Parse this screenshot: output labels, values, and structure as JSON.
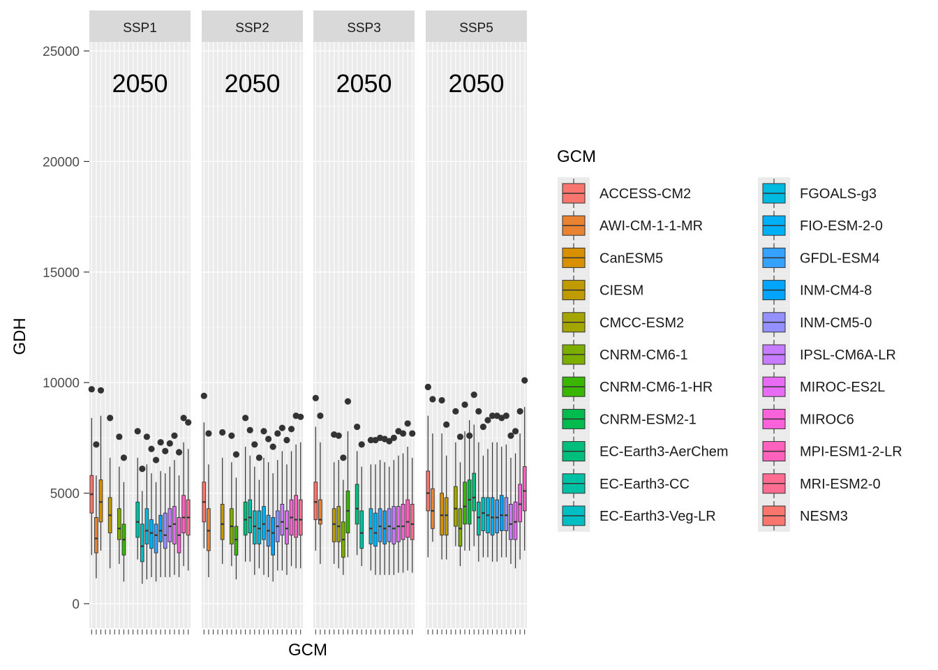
{
  "chart_data": {
    "type": "boxplot",
    "xlabel": "GCM",
    "ylabel": "GDH",
    "ylim": [
      -1100,
      26800
    ],
    "y_ticks": [
      0,
      5000,
      10000,
      15000,
      20000,
      25000
    ],
    "y_tick_labels": [
      "0",
      "5000",
      "10000",
      "15000",
      "20000",
      "25000"
    ],
    "x_tick_labels_shown": false,
    "grid": true,
    "legend_title": "GCM",
    "legend_position": "right",
    "categories": [
      "ACCESS-CM2",
      "AWI-CM-1-1-MR",
      "CanESM5",
      "CIESM",
      "CMCC-ESM2",
      "CNRM-CM6-1",
      "CNRM-CM6-1-HR",
      "CNRM-ESM2-1",
      "EC-Earth3-AerChem",
      "EC-Earth3-CC",
      "EC-Earth3-Veg-LR",
      "FGOALS-g3",
      "FIO-ESM-2-0",
      "GFDL-ESM4",
      "INM-CM4-8",
      "INM-CM5-0",
      "IPSL-CM6A-LR",
      "MIROC-ES2L",
      "MIROC6",
      "MPI-ESM1-2-LR",
      "MRI-ESM2-0",
      "NESM3"
    ],
    "colors": [
      "#F8766D",
      "#EA8331",
      "#D89000",
      "#C09B00",
      "#A3A500",
      "#7CAE00",
      "#39B600",
      "#00BB4E",
      "#00BF7D",
      "#00C1A3",
      "#00BFC4",
      "#00BAE0",
      "#00B0F6",
      "#35A2FF",
      "#00A5FF",
      "#9590FF",
      "#C77CFF",
      "#E76BF3",
      "#FA62DB",
      "#FF62BC",
      "#FF6C91",
      "#F8766D"
    ],
    "panels": [
      {
        "label": "SSP1",
        "annotation": "2050",
        "boxes": [
          {
            "gcm": "ACCESS-CM2",
            "min": 2200,
            "q1": 4100,
            "median": 4950,
            "q3": 5800,
            "max": 8400,
            "outliers": [
              9700
            ]
          },
          {
            "gcm": "AWI-CM-1-1-MR",
            "min": 1150,
            "q1": 2300,
            "median": 2950,
            "q3": 3900,
            "max": 5800,
            "outliers": [
              7200
            ]
          },
          {
            "gcm": "CanESM5",
            "min": 2400,
            "q1": 3700,
            "median": 4600,
            "q3": 5600,
            "max": 8500,
            "outliers": [
              9650
            ]
          },
          null,
          {
            "gcm": "CIESM",
            "min": 1600,
            "q1": 3200,
            "median": 4000,
            "q3": 4800,
            "max": 6600,
            "outliers": [
              8400
            ]
          },
          null,
          {
            "gcm": "CNRM-CM6-1",
            "min": 1800,
            "q1": 2900,
            "median": 3400,
            "q3": 4300,
            "max": 6200,
            "outliers": [
              7550
            ]
          },
          {
            "gcm": "CNRM-CM6-1-HR",
            "min": 1000,
            "q1": 2200,
            "median": 2900,
            "q3": 3600,
            "max": 5500,
            "outliers": [
              6600
            ]
          },
          null,
          null,
          {
            "gcm": "EC-Earth3-CC",
            "min": 2000,
            "q1": 3000,
            "median": 3700,
            "q3": 4600,
            "max": 6600,
            "outliers": [
              7800
            ]
          },
          {
            "gcm": "EC-Earth3-Veg-LR",
            "min": 900,
            "q1": 1900,
            "median": 2600,
            "q3": 3600,
            "max": 5100,
            "outliers": [
              6100
            ]
          },
          {
            "gcm": "FGOALS-g3",
            "min": 1100,
            "q1": 2700,
            "median": 3300,
            "q3": 4300,
            "max": 6300,
            "outliers": [
              7550
            ]
          },
          {
            "gcm": "FIO-ESM-2-0",
            "min": 1200,
            "q1": 2500,
            "median": 3200,
            "q3": 3800,
            "max": 5900,
            "outliers": [
              7000
            ]
          },
          {
            "gcm": "GFDL-ESM4",
            "min": 1000,
            "q1": 2300,
            "median": 3100,
            "q3": 3600,
            "max": 5500,
            "outliers": [
              6500
            ]
          },
          {
            "gcm": "INM-CM4-8",
            "min": 1200,
            "q1": 2800,
            "median": 3300,
            "q3": 4000,
            "max": 6000,
            "outliers": [
              7300
            ]
          },
          {
            "gcm": "INM-CM5-0",
            "min": 1200,
            "q1": 2500,
            "median": 3100,
            "q3": 4100,
            "max": 5900,
            "outliers": [
              6900
            ]
          },
          {
            "gcm": "IPSL-CM6A-LR",
            "min": 1200,
            "q1": 2800,
            "median": 3500,
            "q3": 4300,
            "max": 6200,
            "outliers": [
              7250
            ]
          },
          {
            "gcm": "MIROC-ES2L",
            "min": 1300,
            "q1": 2700,
            "median": 3600,
            "q3": 4400,
            "max": 6500,
            "outliers": [
              7600
            ]
          },
          {
            "gcm": "MIROC6",
            "min": 1200,
            "q1": 2300,
            "median": 3100,
            "q3": 3900,
            "max": 5800,
            "outliers": [
              6850
            ]
          },
          {
            "gcm": "MPI-ESM1-2-LR",
            "min": 1700,
            "q1": 3200,
            "median": 3900,
            "q3": 4900,
            "max": 7300,
            "outliers": [
              8400
            ]
          },
          {
            "gcm": "MRI-ESM2-0",
            "min": 1500,
            "q1": 3100,
            "median": 3900,
            "q3": 4700,
            "max": 7000,
            "outliers": [
              8200
            ]
          }
        ]
      },
      {
        "label": "SSP2",
        "annotation": "2050",
        "boxes": [
          {
            "gcm": "ACCESS-CM2",
            "min": 2500,
            "q1": 3700,
            "median": 4600,
            "q3": 5500,
            "max": 8200,
            "outliers": [
              9400
            ]
          },
          {
            "gcm": "AWI-CM-1-1-MR",
            "min": 1200,
            "q1": 2400,
            "median": 3300,
            "q3": 4300,
            "max": 6300,
            "outliers": [
              7700
            ]
          },
          null,
          null,
          {
            "gcm": "CIESM",
            "min": 1800,
            "q1": 2900,
            "median": 3600,
            "q3": 4500,
            "max": 6600,
            "outliers": [
              7750
            ]
          },
          null,
          {
            "gcm": "CNRM-CM6-1",
            "min": 1700,
            "q1": 2700,
            "median": 3500,
            "q3": 4300,
            "max": 6400,
            "outliers": [
              7600
            ]
          },
          {
            "gcm": "CNRM-CM6-1-HR",
            "min": 1100,
            "q1": 2200,
            "median": 2900,
            "q3": 3500,
            "max": 5700,
            "outliers": [
              6750
            ]
          },
          null,
          {
            "gcm": "EC-Earth3-AerChem",
            "min": 1900,
            "q1": 3100,
            "median": 3800,
            "q3": 4600,
            "max": 7100,
            "outliers": [
              8400
            ]
          },
          {
            "gcm": "EC-Earth3-CC",
            "min": 1900,
            "q1": 3200,
            "median": 3900,
            "q3": 4700,
            "max": 6700,
            "outliers": [
              7850
            ]
          },
          {
            "gcm": "EC-Earth3-Veg-LR",
            "min": 1300,
            "q1": 2700,
            "median": 3500,
            "q3": 4200,
            "max": 6200,
            "outliers": [
              7200
            ]
          },
          {
            "gcm": "FGOALS-g3",
            "min": 1600,
            "q1": 2700,
            "median": 3400,
            "q3": 4200,
            "max": 5600,
            "outliers": [
              6600
            ]
          },
          {
            "gcm": "FIO-ESM-2-0",
            "min": 1300,
            "q1": 2900,
            "median": 3600,
            "q3": 4400,
            "max": 6600,
            "outliers": [
              7800
            ]
          },
          {
            "gcm": "GFDL-ESM4",
            "min": 1200,
            "q1": 2600,
            "median": 3300,
            "q3": 4000,
            "max": 6400,
            "outliers": [
              7450
            ]
          },
          {
            "gcm": "INM-CM4-8",
            "min": 1000,
            "q1": 2200,
            "median": 3200,
            "q3": 3900,
            "max": 5900,
            "outliers": [
              7100
            ]
          },
          {
            "gcm": "INM-CM5-0",
            "min": 1500,
            "q1": 2800,
            "median": 3500,
            "q3": 4200,
            "max": 6500,
            "outliers": [
              7700
            ]
          },
          {
            "gcm": "IPSL-CM6A-LR",
            "min": 1500,
            "q1": 3100,
            "median": 3700,
            "q3": 4500,
            "max": 6900,
            "outliers": [
              7950
            ]
          },
          {
            "gcm": "MIROC-ES2L",
            "min": 1300,
            "q1": 2700,
            "median": 3400,
            "q3": 4200,
            "max": 6300,
            "outliers": [
              7400
            ]
          },
          {
            "gcm": "MIROC6",
            "min": 1700,
            "q1": 3100,
            "median": 3900,
            "q3": 4700,
            "max": 6900,
            "outliers": [
              7900
            ]
          },
          {
            "gcm": "MPI-ESM1-2-LR",
            "min": 1600,
            "q1": 3000,
            "median": 3800,
            "q3": 4900,
            "max": 7200,
            "outliers": [
              8500
            ]
          },
          {
            "gcm": "MRI-ESM2-0",
            "min": 1600,
            "q1": 3100,
            "median": 3800,
            "q3": 4700,
            "max": 7300,
            "outliers": [
              8450
            ]
          }
        ]
      },
      {
        "label": "SSP3",
        "annotation": "2050",
        "boxes": [
          {
            "gcm": "ACCESS-CM2",
            "min": 2400,
            "q1": 3800,
            "median": 4600,
            "q3": 5500,
            "max": 8000,
            "outliers": [
              9300
            ]
          },
          {
            "gcm": "AWI-CM-1-1-MR",
            "min": 1800,
            "q1": 3600,
            "median": 3800,
            "q3": 4700,
            "max": 7300,
            "outliers": [
              8500
            ]
          },
          null,
          null,
          {
            "gcm": "CIESM",
            "min": 1800,
            "q1": 2800,
            "median": 3600,
            "q3": 4300,
            "max": 6400,
            "outliers": [
              7650
            ]
          },
          {
            "gcm": "CMCC-ESM2",
            "min": 1600,
            "q1": 2800,
            "median": 3500,
            "q3": 4400,
            "max": 6500,
            "outliers": [
              7600
            ]
          },
          {
            "gcm": "CNRM-CM6-1",
            "min": 1300,
            "q1": 2100,
            "median": 2900,
            "q3": 3700,
            "max": 5600,
            "outliers": [
              6600
            ]
          },
          {
            "gcm": "CNRM-CM6-1-HR",
            "min": 2100,
            "q1": 3200,
            "median": 4200,
            "q3": 5100,
            "max": 7800,
            "outliers": [
              9150
            ]
          },
          null,
          {
            "gcm": "EC-Earth3-AerChem",
            "min": 2200,
            "q1": 3600,
            "median": 4300,
            "q3": 5400,
            "max": 6900,
            "outliers": [
              8000
            ]
          },
          {
            "gcm": "EC-Earth3-CC",
            "min": 1700,
            "q1": 2500,
            "median": 3200,
            "q3": 4200,
            "max": 6200,
            "outliers": [
              7200
            ]
          },
          null,
          {
            "gcm": "FGOALS-g3",
            "min": 1500,
            "q1": 2700,
            "median": 3400,
            "q3": 4300,
            "max": 6300,
            "outliers": [
              7400
            ]
          },
          {
            "gcm": "FIO-ESM-2-0",
            "min": 1300,
            "q1": 2600,
            "median": 3200,
            "q3": 4100,
            "max": 6300,
            "outliers": [
              7400
            ]
          },
          {
            "gcm": "GFDL-ESM4",
            "min": 1300,
            "q1": 2800,
            "median": 3500,
            "q3": 4300,
            "max": 6500,
            "outliers": [
              7500
            ]
          },
          {
            "gcm": "INM-CM4-8",
            "min": 1300,
            "q1": 2700,
            "median": 3400,
            "q3": 4200,
            "max": 6400,
            "outliers": [
              7450
            ]
          },
          {
            "gcm": "INM-CM5-0",
            "min": 1300,
            "q1": 2800,
            "median": 3500,
            "q3": 4300,
            "max": 6200,
            "outliers": [
              7350
            ]
          },
          {
            "gcm": "IPSL-CM6A-LR",
            "min": 1300,
            "q1": 2700,
            "median": 3400,
            "q3": 4400,
            "max": 6500,
            "outliers": [
              7500
            ]
          },
          {
            "gcm": "MIROC-ES2L",
            "min": 1400,
            "q1": 2800,
            "median": 3500,
            "q3": 4400,
            "max": 6700,
            "outliers": [
              7800
            ]
          },
          {
            "gcm": "MIROC6",
            "min": 1400,
            "q1": 2900,
            "median": 3500,
            "q3": 4500,
            "max": 6800,
            "outliers": [
              7700
            ]
          },
          {
            "gcm": "MPI-ESM1-2-LR",
            "min": 1500,
            "q1": 3000,
            "median": 3700,
            "q3": 4700,
            "max": 7100,
            "outliers": [
              8150
            ]
          },
          {
            "gcm": "MRI-ESM2-0",
            "min": 1400,
            "q1": 2900,
            "median": 3600,
            "q3": 4500,
            "max": 6600,
            "outliers": [
              7700
            ]
          }
        ]
      },
      {
        "label": "SSP5",
        "annotation": "2050",
        "boxes": [
          {
            "gcm": "ACCESS-CM2",
            "min": 2100,
            "q1": 4200,
            "median": 5000,
            "q3": 6000,
            "max": 8500,
            "outliers": [
              9800
            ]
          },
          {
            "gcm": "AWI-CM-1-1-MR",
            "min": 2800,
            "q1": 3400,
            "median": 4200,
            "q3": 5200,
            "max": 7700,
            "outliers": [
              9250
            ]
          },
          null,
          {
            "gcm": "CanESM5",
            "min": 2000,
            "q1": 3100,
            "median": 4000,
            "q3": 5000,
            "max": 7700,
            "outliers": [
              9200
            ]
          },
          {
            "gcm": "CIESM",
            "min": 2000,
            "q1": 3100,
            "median": 4000,
            "q3": 4800,
            "max": 6700,
            "outliers": [
              8100
            ]
          },
          null,
          {
            "gcm": "CMCC-ESM2",
            "min": 2600,
            "q1": 3500,
            "median": 4300,
            "q3": 5300,
            "max": 7300,
            "outliers": [
              8700
            ]
          },
          {
            "gcm": "CNRM-CM6-1",
            "min": 1700,
            "q1": 2600,
            "median": 3400,
            "q3": 4300,
            "max": 6400,
            "outliers": [
              7550
            ]
          },
          {
            "gcm": "CNRM-CM6-1-HR",
            "min": 2400,
            "q1": 3600,
            "median": 4400,
            "q3": 5500,
            "max": 7800,
            "outliers": [
              9000
            ]
          },
          {
            "gcm": "CNRM-ESM2-1",
            "min": 2400,
            "q1": 3600,
            "median": 4700,
            "q3": 5600,
            "max": 8300,
            "outliers": [
              7600
            ]
          },
          {
            "gcm": "EC-Earth3-AerChem",
            "min": 2600,
            "q1": 4200,
            "median": 4800,
            "q3": 5900,
            "max": 8100,
            "outliers": [
              9450
            ]
          },
          {
            "gcm": "EC-Earth3-CC",
            "min": 1900,
            "q1": 3100,
            "median": 3900,
            "q3": 4600,
            "max": 7300,
            "outliers": [
              8700
            ]
          },
          {
            "gcm": "EC-Earth3-Veg-LR",
            "min": 2100,
            "q1": 3300,
            "median": 4100,
            "q3": 4800,
            "max": 6700,
            "outliers": [
              8000
            ]
          },
          {
            "gcm": "FGOALS-g3",
            "min": 2100,
            "q1": 3200,
            "median": 4000,
            "q3": 4800,
            "max": 7000,
            "outliers": [
              8300
            ]
          },
          {
            "gcm": "FIO-ESM-2-0",
            "min": 1900,
            "q1": 3100,
            "median": 3900,
            "q3": 4800,
            "max": 7300,
            "outliers": [
              8500
            ]
          },
          {
            "gcm": "GFDL-ESM4",
            "min": 1900,
            "q1": 3200,
            "median": 3900,
            "q3": 4700,
            "max": 7300,
            "outliers": [
              8500
            ]
          },
          {
            "gcm": "INM-CM4-8",
            "min": 2100,
            "q1": 3300,
            "median": 4000,
            "q3": 4900,
            "max": 7100,
            "outliers": [
              8400
            ]
          },
          {
            "gcm": "INM-CM5-0",
            "min": 2100,
            "q1": 3300,
            "median": 4000,
            "q3": 4800,
            "max": 7200,
            "outliers": [
              8500
            ]
          },
          {
            "gcm": "IPSL-CM6A-LR",
            "min": 1800,
            "q1": 2900,
            "median": 3600,
            "q3": 4500,
            "max": 6600,
            "outliers": [
              7600
            ]
          },
          {
            "gcm": "MIROC-ES2L",
            "min": 1600,
            "q1": 2900,
            "median": 3700,
            "q3": 4600,
            "max": 6800,
            "outliers": [
              7800
            ]
          },
          {
            "gcm": "MIROC6",
            "min": 2000,
            "q1": 3700,
            "median": 4500,
            "q3": 5400,
            "max": 7700,
            "outliers": [
              8700
            ]
          },
          {
            "gcm": "MPI-ESM1-2-LR",
            "min": 2400,
            "q1": 4200,
            "median": 5100,
            "q3": 6200,
            "max": 8900,
            "outliers": [
              10100
            ]
          }
        ]
      }
    ]
  }
}
